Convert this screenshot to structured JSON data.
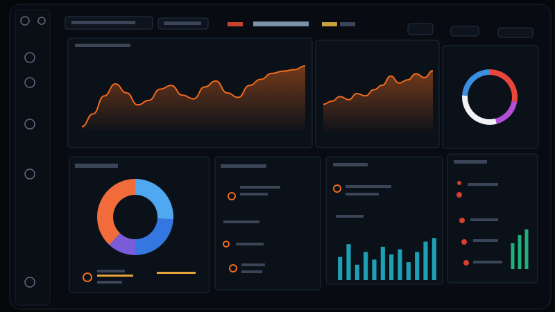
{
  "chart_data": [
    {
      "type": "line",
      "color": "#f26b1d",
      "ylim": [
        0,
        100
      ],
      "values": [
        5,
        22,
        46,
        62,
        50,
        34,
        40,
        55,
        60,
        47,
        42,
        58,
        66,
        50,
        44,
        60,
        68,
        76,
        79,
        81,
        86
      ]
    },
    {
      "type": "area",
      "color": "#f26b1d",
      "ylim": [
        0,
        100
      ],
      "values": [
        36,
        40,
        46,
        42,
        50,
        47,
        55,
        61,
        73,
        64,
        68,
        76,
        71,
        80
      ]
    },
    {
      "type": "pie",
      "series": [
        {
          "color": "#e8453c",
          "values": [
            28
          ]
        },
        {
          "color": "#b24fd6",
          "values": [
            18
          ]
        },
        {
          "color": "#f2f2f5",
          "values": [
            30
          ]
        },
        {
          "color": "#3b8fe0",
          "values": [
            24
          ]
        }
      ]
    },
    {
      "type": "pie",
      "series": [
        {
          "color": "#4fa8f0",
          "values": [
            26
          ]
        },
        {
          "color": "#3577e0",
          "values": [
            24
          ]
        },
        {
          "color": "#7a5bd8",
          "values": [
            12
          ]
        },
        {
          "color": "#f26b3a",
          "values": [
            38
          ]
        }
      ]
    },
    {
      "type": "bar",
      "color": "#1f9fb3",
      "ylim": [
        0,
        100
      ],
      "values": [
        45,
        70,
        30,
        55,
        40,
        65,
        50,
        60,
        35,
        55,
        75,
        82
      ]
    },
    {
      "type": "bar",
      "color": "#22b07a",
      "ylim": [
        0,
        100
      ],
      "values": [
        55,
        72,
        84
      ]
    }
  ]
}
